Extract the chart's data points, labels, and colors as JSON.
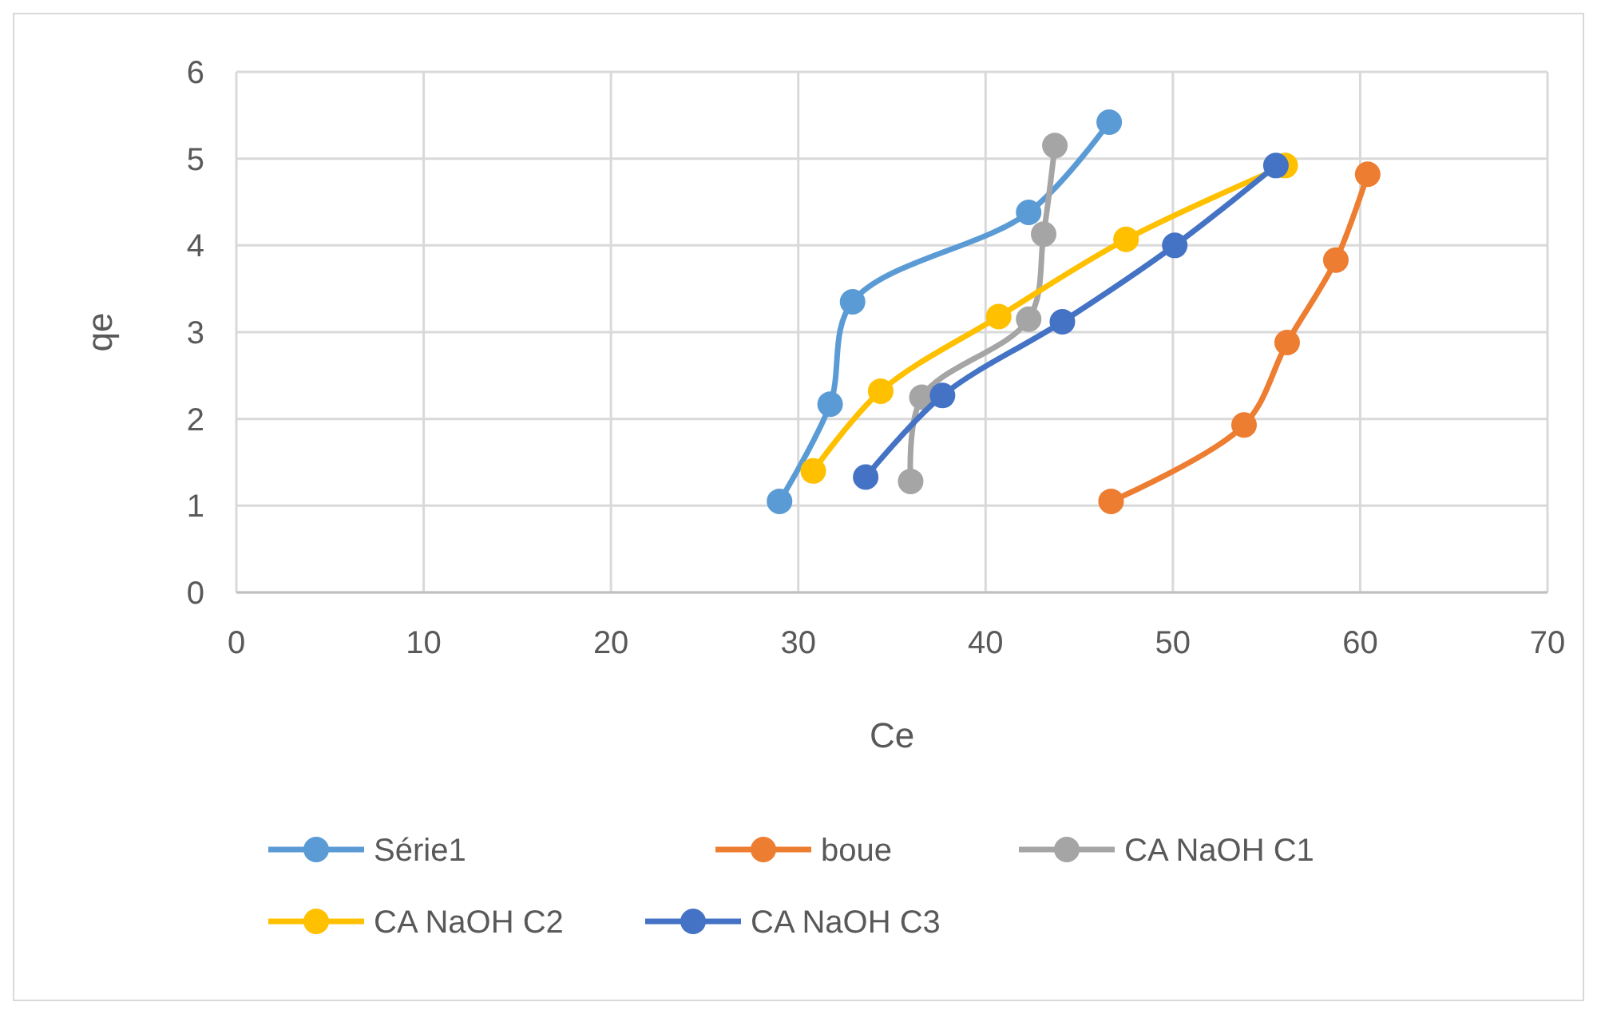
{
  "chart_data": {
    "type": "line",
    "xlabel": "Ce",
    "ylabel": "qe",
    "xlim": [
      0,
      70
    ],
    "xticks": [
      0,
      10,
      20,
      30,
      40,
      50,
      60,
      70
    ],
    "ylim": [
      0,
      6
    ],
    "yticks": [
      0,
      1,
      2,
      3,
      4,
      5,
      6
    ],
    "grid": true,
    "legend": "bottom",
    "marker": "circle",
    "line_style": "solid",
    "series": [
      {
        "name": "Série1",
        "color": "#5b9bd5",
        "x": [
          29.0,
          31.7,
          32.9,
          42.3,
          46.6
        ],
        "values": [
          1.05,
          2.17,
          3.35,
          4.38,
          5.42
        ]
      },
      {
        "name": "boue",
        "color": "#ed7d31",
        "x": [
          46.7,
          53.8,
          56.1,
          58.7,
          60.4
        ],
        "values": [
          1.05,
          1.93,
          2.88,
          3.83,
          4.82
        ]
      },
      {
        "name": "CA NaOH C1",
        "color": "#a5a5a5",
        "x": [
          36.0,
          36.6,
          42.3,
          43.1,
          43.7
        ],
        "values": [
          1.28,
          2.25,
          3.15,
          4.13,
          5.15
        ]
      },
      {
        "name": "CA NaOH C2",
        "color": "#ffc000",
        "x": [
          30.8,
          34.4,
          40.7,
          47.5,
          56.0
        ],
        "values": [
          1.4,
          2.32,
          3.18,
          4.07,
          4.92
        ]
      },
      {
        "name": "CA NaOH C3",
        "color": "#4472c4",
        "x": [
          33.6,
          37.7,
          44.1,
          50.1,
          55.5
        ],
        "values": [
          1.33,
          2.27,
          3.12,
          4.0,
          4.92
        ]
      }
    ]
  }
}
